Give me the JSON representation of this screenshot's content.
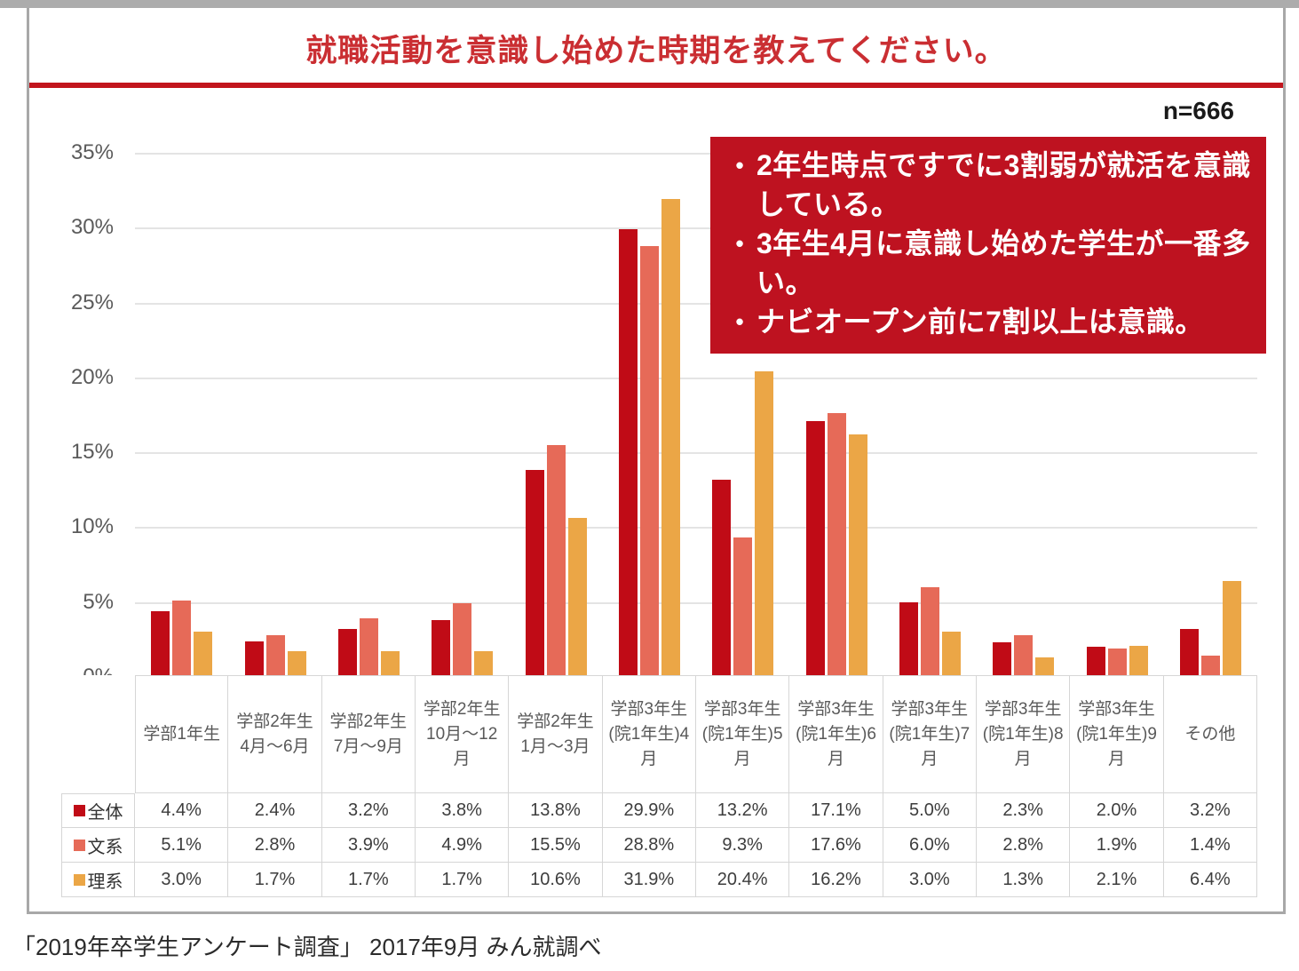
{
  "header": {
    "title": "就職活動を意識し始めた時期を教えてください。",
    "sample_size": "n=666"
  },
  "colors": {
    "title_red": "#ca2e32",
    "rule_red": "#c2151d",
    "annotation_bg": "#be1220",
    "annotation_text": "#ffffff",
    "series_zentai": "#c00b16",
    "series_bunkei": "#e66a58",
    "series_rikei": "#eba646",
    "panel_border": "#a8a8a8",
    "gridline": "#e4e4e4"
  },
  "annotation": {
    "bullets": [
      "2年生時点ですでに3割弱が就活を意識している。",
      "3年生4月に意識し始めた学生が一番多い。",
      "ナビオープン前に7割以上は意識。"
    ]
  },
  "chart_data": {
    "type": "bar",
    "title": "就職活動を意識し始めた時期を教えてください。",
    "sample_size": "n=666",
    "categories": [
      "学部1年生",
      "学部2年生4月〜6月",
      "学部2年生7月〜9月",
      "学部2年生10月〜12月",
      "学部2年生1月〜3月",
      "学部3年生(院1年生)4月",
      "学部3年生(院1年生)5月",
      "学部3年生(院1年生)6月",
      "学部3年生(院1年生)7月",
      "学部3年生(院1年生)8月",
      "学部3年生(院1年生)9月",
      "その他"
    ],
    "series": [
      {
        "name": "全体",
        "color": "#c00b16",
        "values": [
          4.4,
          2.4,
          3.2,
          3.8,
          13.8,
          29.9,
          13.2,
          17.1,
          5.0,
          2.3,
          2.0,
          3.2
        ]
      },
      {
        "name": "文系",
        "color": "#e66a58",
        "values": [
          5.1,
          2.8,
          3.9,
          4.9,
          15.5,
          28.8,
          9.3,
          17.6,
          6.0,
          2.8,
          1.9,
          1.4
        ]
      },
      {
        "name": "理系",
        "color": "#eba646",
        "values": [
          3.0,
          1.7,
          1.7,
          1.7,
          10.6,
          31.9,
          20.4,
          16.2,
          3.0,
          1.3,
          2.1,
          6.4
        ]
      }
    ],
    "ylim": [
      0,
      35
    ],
    "ytick_values": [
      0,
      5,
      10,
      15,
      20,
      25,
      30,
      35
    ],
    "ytick_suffix": "%",
    "value_suffix": "%",
    "grid": true,
    "legend_position": "table-left"
  },
  "footer": {
    "source": "「2019年卒学生アンケート調査」 2017年9月 みん就調べ"
  }
}
